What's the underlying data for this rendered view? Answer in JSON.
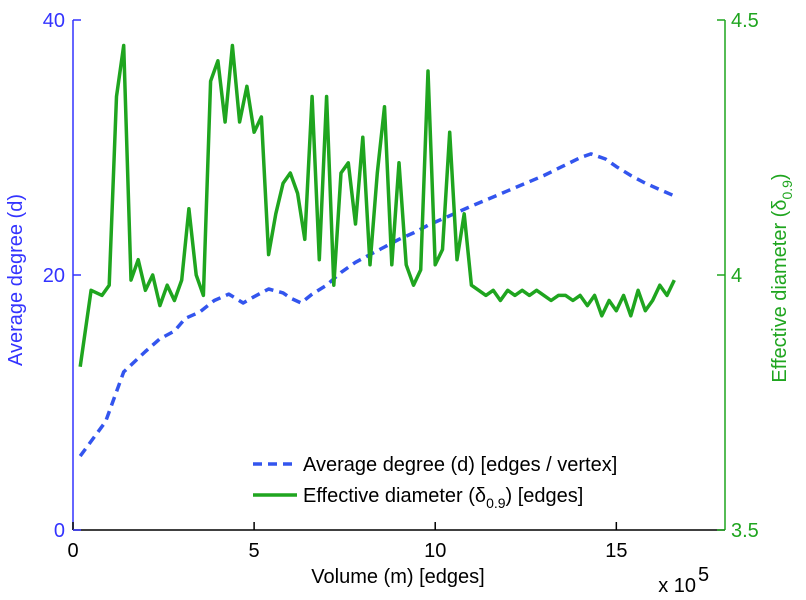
{
  "chart_data": {
    "type": "line",
    "title": "",
    "xlabel": "Volume (m) [edges]",
    "x_multiplier": "x 10",
    "x_multiplier_exp": "5",
    "ylabel_left": "Average degree (d)",
    "ylabel_right_main": "Effective diameter (δ",
    "ylabel_right_sub": "0.9",
    "ylabel_right_close": ")",
    "xlim": [
      0,
      18
    ],
    "ylim_left": [
      0,
      40
    ],
    "ylim_right": [
      3.5,
      4.5
    ],
    "xticks": [
      0,
      5,
      10,
      15
    ],
    "xtick_labels": [
      "0",
      "5",
      "10",
      "15"
    ],
    "yticks_left": [
      0,
      20,
      40
    ],
    "ytick_labels_left": [
      "0",
      "20",
      "40"
    ],
    "yticks_right": [
      3.5,
      4,
      4.5
    ],
    "ytick_labels_right": [
      "3.5",
      "4",
      "4.5"
    ],
    "legend_position": "bottom-right",
    "colors": {
      "left_axis": "#3333ff",
      "right_axis": "#1fa51f",
      "avg_degree": "#3355ee",
      "diameter": "#1fa51f"
    },
    "series": [
      {
        "name": "Average degree (d) [edges / vertex]",
        "axis": "left",
        "style": "dashed",
        "x": [
          0.2,
          0.9,
          1.4,
          2.0,
          2.4,
          2.8,
          3.1,
          3.5,
          3.9,
          4.3,
          4.7,
          5.0,
          5.4,
          5.8,
          6.0,
          6.3,
          6.6,
          7.0,
          7.4,
          7.8,
          8.2,
          8.6,
          9.0,
          9.4,
          9.8,
          10.2,
          10.6,
          11.0,
          11.5,
          12.0,
          12.5,
          13.0,
          13.5,
          14.0,
          14.3,
          14.7,
          15.0,
          15.4,
          15.8,
          16.2,
          16.6
        ],
        "values": [
          5.8,
          8.5,
          12.4,
          14.0,
          15.0,
          15.6,
          16.6,
          17.1,
          18.0,
          18.5,
          17.8,
          18.3,
          18.9,
          18.6,
          18.2,
          17.8,
          18.5,
          19.2,
          20.2,
          21.0,
          21.6,
          22.2,
          22.8,
          23.3,
          23.9,
          24.4,
          24.9,
          25.4,
          26.0,
          26.6,
          27.2,
          27.8,
          28.5,
          29.2,
          29.5,
          29.1,
          28.5,
          27.8,
          27.2,
          26.7,
          26.2
        ]
      },
      {
        "name": "Effective diameter (δ0.9) [edges]",
        "axis": "right",
        "style": "solid",
        "x": [
          0.2,
          0.5,
          0.8,
          1.0,
          1.2,
          1.4,
          1.6,
          1.8,
          2.0,
          2.2,
          2.4,
          2.6,
          2.8,
          3.0,
          3.2,
          3.4,
          3.6,
          3.8,
          4.0,
          4.2,
          4.4,
          4.6,
          4.8,
          5.0,
          5.2,
          5.4,
          5.6,
          5.8,
          6.0,
          6.2,
          6.4,
          6.6,
          6.8,
          7.0,
          7.2,
          7.4,
          7.6,
          7.8,
          8.0,
          8.2,
          8.4,
          8.6,
          8.8,
          9.0,
          9.2,
          9.4,
          9.6,
          9.8,
          10.0,
          10.2,
          10.4,
          10.6,
          10.8,
          11.0,
          11.2,
          11.4,
          11.6,
          11.8,
          12.0,
          12.2,
          12.4,
          12.6,
          12.8,
          13.0,
          13.2,
          13.4,
          13.6,
          13.8,
          14.0,
          14.2,
          14.4,
          14.6,
          14.8,
          15.0,
          15.2,
          15.4,
          15.6,
          15.8,
          16.0,
          16.2,
          16.4,
          16.6
        ],
        "values": [
          3.82,
          3.97,
          3.96,
          3.98,
          4.35,
          4.45,
          3.99,
          4.03,
          3.97,
          4.0,
          3.94,
          3.98,
          3.95,
          3.99,
          4.13,
          4.0,
          3.96,
          4.38,
          4.42,
          4.3,
          4.45,
          4.3,
          4.37,
          4.28,
          4.31,
          4.04,
          4.12,
          4.18,
          4.2,
          4.16,
          4.07,
          4.35,
          4.03,
          4.35,
          3.98,
          4.2,
          4.22,
          4.1,
          4.27,
          4.02,
          4.2,
          4.33,
          4.02,
          4.22,
          4.02,
          3.98,
          4.01,
          4.4,
          4.02,
          4.05,
          4.28,
          4.03,
          4.12,
          3.98,
          3.97,
          3.96,
          3.97,
          3.95,
          3.97,
          3.96,
          3.97,
          3.96,
          3.97,
          3.96,
          3.95,
          3.96,
          3.96,
          3.95,
          3.96,
          3.94,
          3.96,
          3.92,
          3.95,
          3.93,
          3.96,
          3.92,
          3.97,
          3.93,
          3.95,
          3.98,
          3.96,
          3.99
        ]
      }
    ]
  },
  "legend": {
    "avg_degree_label": "Average degree (d) [edges / vertex]",
    "diameter_label_main": "Effective diameter (δ",
    "diameter_label_sub": "0.9",
    "diameter_label_close": ") [edges]"
  }
}
